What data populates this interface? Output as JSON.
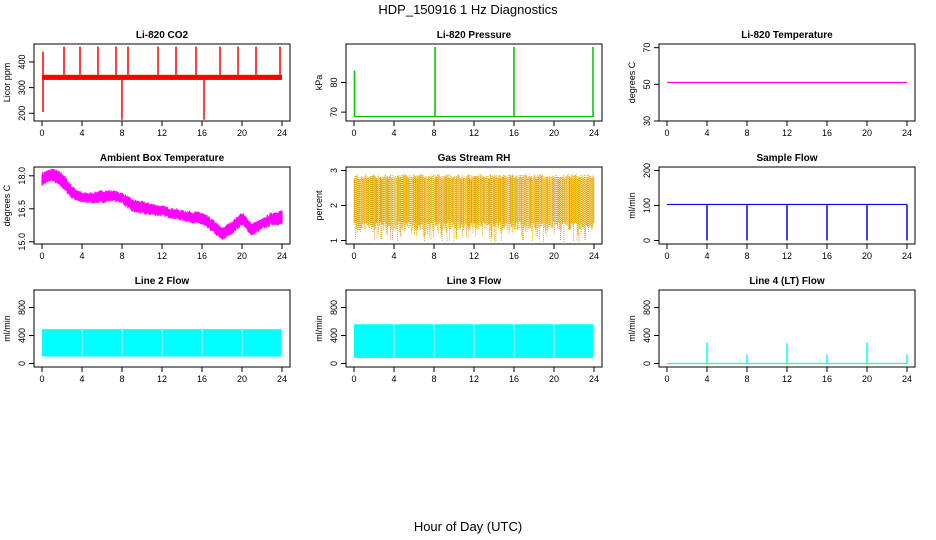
{
  "title": "HDP_150916  1 Hz Diagnostics",
  "xlabel": "Hour of Day (UTC)",
  "chart_data": [
    {
      "type": "line",
      "title": "Li-820 CO2",
      "ylabel": "Licor ppm",
      "color": "#ff0000",
      "xlim": [
        0,
        24
      ],
      "ylim": [
        170,
        470
      ],
      "xticks": [
        0,
        4,
        8,
        12,
        16,
        20,
        24
      ],
      "yticks": [
        200,
        300,
        400
      ],
      "baseline_range": [
        330,
        350
      ],
      "spikes_up": [
        {
          "x": 0.1,
          "y": 440
        },
        {
          "x": 2.2,
          "y": 460
        },
        {
          "x": 3.8,
          "y": 460
        },
        {
          "x": 5.6,
          "y": 460
        },
        {
          "x": 7.4,
          "y": 460
        },
        {
          "x": 8.6,
          "y": 460
        },
        {
          "x": 11.6,
          "y": 460
        },
        {
          "x": 13.4,
          "y": 460
        },
        {
          "x": 15.4,
          "y": 460
        },
        {
          "x": 17.8,
          "y": 460
        },
        {
          "x": 19.6,
          "y": 460
        },
        {
          "x": 21.4,
          "y": 460
        },
        {
          "x": 23.8,
          "y": 460
        }
      ],
      "spikes_down": [
        {
          "x": 0.1,
          "y": 205
        },
        {
          "x": 8.0,
          "y": 175
        },
        {
          "x": 16.2,
          "y": 175
        }
      ]
    },
    {
      "type": "line",
      "title": "Li-820 Pressure",
      "ylabel": "kPa",
      "color": "#00c000",
      "xlim": [
        0,
        24
      ],
      "ylim": [
        67,
        93
      ],
      "xticks": [
        0,
        4,
        8,
        12,
        16,
        20,
        24
      ],
      "yticks": [
        70,
        80
      ],
      "baseline": 68.5,
      "spikes_up": [
        {
          "x": 0.05,
          "y": 84
        },
        {
          "x": 8.1,
          "y": 92
        },
        {
          "x": 16.0,
          "y": 92
        },
        {
          "x": 23.9,
          "y": 92
        }
      ]
    },
    {
      "type": "line",
      "title": "Li-820 Temperature",
      "ylabel": "degrees C",
      "color": "#ff00ff",
      "xlim": [
        0,
        24
      ],
      "ylim": [
        30,
        72
      ],
      "xticks": [
        0,
        4,
        8,
        12,
        16,
        20,
        24
      ],
      "yticks": [
        30,
        50,
        70
      ],
      "baseline": 51
    },
    {
      "type": "area",
      "title": "Ambient Box Temperature",
      "ylabel": "degrees C",
      "color": "#ff00ff",
      "xlim": [
        0,
        24
      ],
      "ylim": [
        14.9,
        18.4
      ],
      "xticks": [
        0,
        4,
        8,
        12,
        16,
        20,
        24
      ],
      "yticks": [
        15.0,
        16.5,
        18.0
      ],
      "band": [
        {
          "x": 0,
          "lo": 17.6,
          "hi": 18.1
        },
        {
          "x": 1,
          "lo": 17.8,
          "hi": 18.3
        },
        {
          "x": 2,
          "lo": 17.5,
          "hi": 18.1
        },
        {
          "x": 3,
          "lo": 17.0,
          "hi": 17.5
        },
        {
          "x": 4,
          "lo": 16.8,
          "hi": 17.2
        },
        {
          "x": 5,
          "lo": 16.8,
          "hi": 17.2
        },
        {
          "x": 6,
          "lo": 16.8,
          "hi": 17.3
        },
        {
          "x": 7,
          "lo": 16.9,
          "hi": 17.3
        },
        {
          "x": 8,
          "lo": 16.8,
          "hi": 17.2
        },
        {
          "x": 9,
          "lo": 16.4,
          "hi": 16.9
        },
        {
          "x": 10,
          "lo": 16.3,
          "hi": 16.8
        },
        {
          "x": 12,
          "lo": 16.2,
          "hi": 16.6
        },
        {
          "x": 14,
          "lo": 16.0,
          "hi": 16.4
        },
        {
          "x": 16,
          "lo": 15.8,
          "hi": 16.3
        },
        {
          "x": 17,
          "lo": 15.5,
          "hi": 16.0
        },
        {
          "x": 18,
          "lo": 15.1,
          "hi": 15.6
        },
        {
          "x": 19,
          "lo": 15.4,
          "hi": 15.9
        },
        {
          "x": 20,
          "lo": 15.8,
          "hi": 16.3
        },
        {
          "x": 21,
          "lo": 15.3,
          "hi": 15.8
        },
        {
          "x": 22,
          "lo": 15.6,
          "hi": 16.0
        },
        {
          "x": 23,
          "lo": 15.8,
          "hi": 16.3
        },
        {
          "x": 24,
          "lo": 15.8,
          "hi": 16.4
        }
      ]
    },
    {
      "type": "area",
      "title": "Gas Stream RH",
      "ylabel": "percent",
      "color": "#e6a800",
      "xlim": [
        0,
        24
      ],
      "ylim": [
        0.9,
        3.1
      ],
      "xticks": [
        0,
        4,
        8,
        12,
        16,
        20,
        24
      ],
      "yticks": [
        1.0,
        2.0,
        3.0
      ],
      "band_range": [
        1.3,
        2.9
      ]
    },
    {
      "type": "line",
      "title": "Sample Flow",
      "ylabel": "ml/min",
      "color": "#0000ff",
      "xlim": [
        0,
        24
      ],
      "ylim": [
        -10,
        210
      ],
      "xticks": [
        0,
        4,
        8,
        12,
        16,
        20,
        24
      ],
      "yticks": [
        0,
        100,
        200
      ],
      "baseline": 103,
      "spikes_down": [
        {
          "x": 4.0,
          "y": 0
        },
        {
          "x": 8.0,
          "y": 0
        },
        {
          "x": 12.0,
          "y": 0
        },
        {
          "x": 16.0,
          "y": 0
        },
        {
          "x": 20.0,
          "y": 0
        },
        {
          "x": 24.0,
          "y": 0
        }
      ]
    },
    {
      "type": "area",
      "title": "Line 2 Flow",
      "ylabel": "ml/min",
      "color": "#00ffff",
      "xlim": [
        0,
        24
      ],
      "ylim": [
        -50,
        1050
      ],
      "xticks": [
        0,
        4,
        8,
        12,
        16,
        20,
        24
      ],
      "yticks": [
        0,
        400,
        800
      ],
      "band_range": [
        100,
        490
      ],
      "gaps": [
        4.0,
        8.0,
        12.0,
        16.0,
        20.0,
        24.0
      ]
    },
    {
      "type": "area",
      "title": "Line 3 Flow",
      "ylabel": "ml/min",
      "color": "#00ffff",
      "xlim": [
        0,
        24
      ],
      "ylim": [
        -50,
        1050
      ],
      "xticks": [
        0,
        4,
        8,
        12,
        16,
        20,
        24
      ],
      "yticks": [
        0,
        400,
        800
      ],
      "band_range": [
        80,
        560
      ],
      "gaps": [
        4.0,
        8.0,
        12.0,
        16.0,
        20.0,
        24.0
      ]
    },
    {
      "type": "line",
      "title": "Line 4 (LT) Flow",
      "ylabel": "ml/min",
      "color": "#00ffff",
      "xlim": [
        0,
        24
      ],
      "ylim": [
        -50,
        1050
      ],
      "xticks": [
        0,
        4,
        8,
        12,
        16,
        20,
        24
      ],
      "yticks": [
        0,
        400,
        800
      ],
      "baseline": 0,
      "spikes_up": [
        {
          "x": 4.0,
          "y": 300
        },
        {
          "x": 8.0,
          "y": 130
        },
        {
          "x": 12.0,
          "y": 290
        },
        {
          "x": 16.0,
          "y": 130
        },
        {
          "x": 20.0,
          "y": 300
        },
        {
          "x": 24.0,
          "y": 130
        }
      ]
    }
  ]
}
